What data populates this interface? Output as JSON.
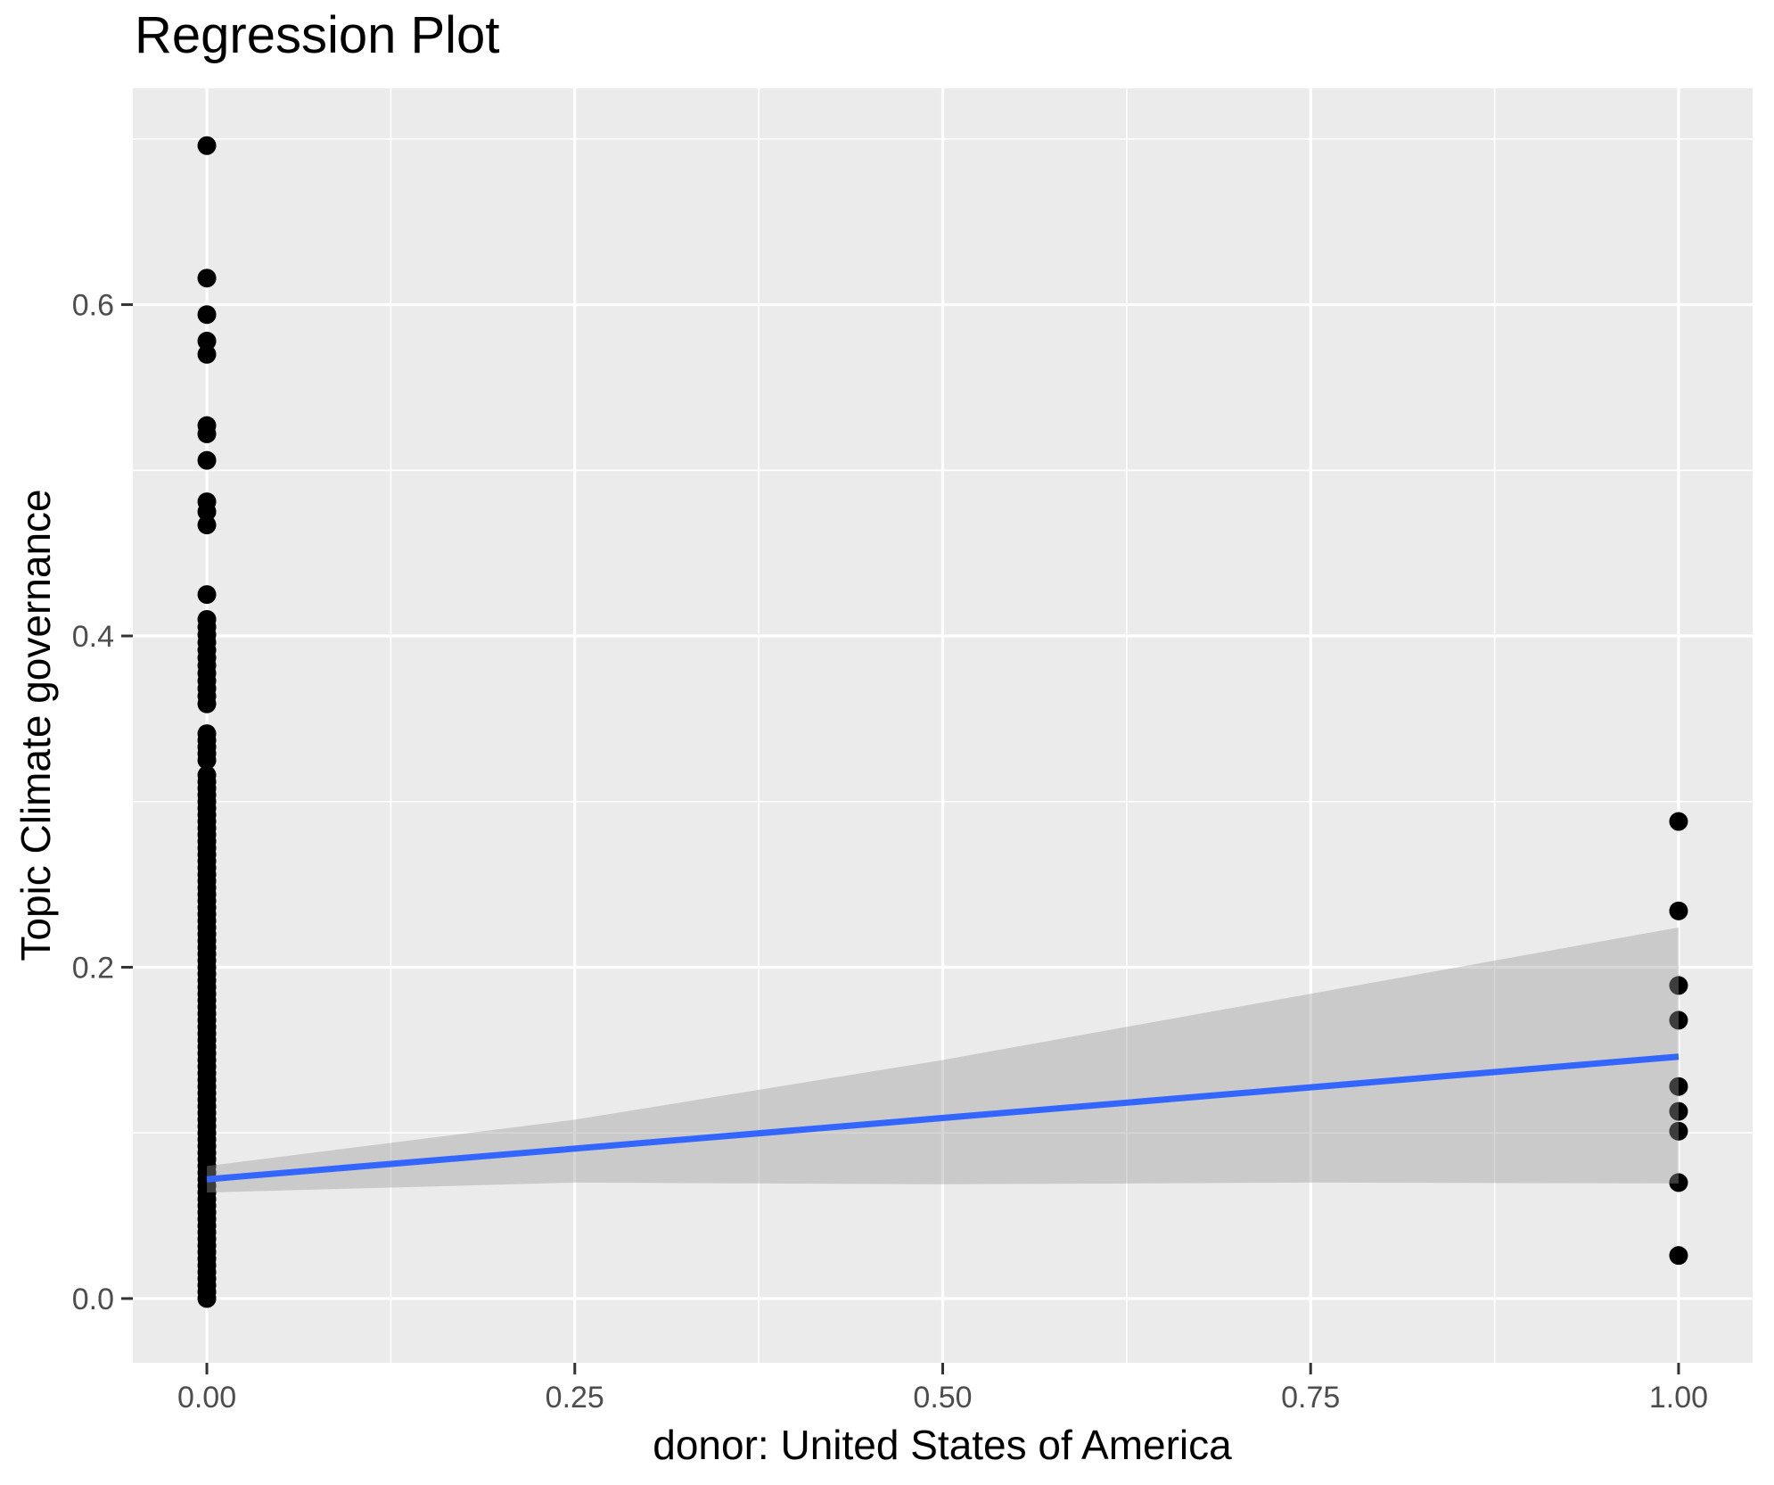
{
  "chart_data": {
    "type": "scatter",
    "title": "Regression Plot",
    "xlabel": "donor: United States of America",
    "ylabel": "Topic Climate governance",
    "legend": "none",
    "grid": "major-and-minor",
    "xlim": [
      -0.0503,
      1.0503
    ],
    "ylim": [
      -0.0388,
      0.7306
    ],
    "x_ticks": {
      "values": [
        0,
        0.25,
        0.5,
        0.75,
        1.0
      ],
      "labels": [
        "0.00",
        "0.25",
        "0.50",
        "0.75",
        "1.00"
      ]
    },
    "y_ticks": {
      "values": [
        0,
        0.2,
        0.4,
        0.6
      ],
      "labels": [
        "0.0",
        "0.2",
        "0.4",
        "0.6"
      ]
    },
    "x_minor": [
      0.125,
      0.375,
      0.625,
      0.875
    ],
    "y_minor": [
      0.1,
      0.3,
      0.5,
      0.7
    ],
    "points": {
      "x0_discrete": [
        0.696,
        0.616,
        0.594,
        0.578,
        0.57,
        0.527,
        0.522,
        0.506,
        0.481,
        0.475,
        0.467,
        0.425
      ],
      "x0_dense_strips": [
        {
          "x": 0,
          "from": 0.359,
          "to": 0.41,
          "count": 12
        },
        {
          "x": 0,
          "from": 0.325,
          "to": 0.341,
          "count": 5
        },
        {
          "x": 0,
          "from": 0.0,
          "to": 0.316,
          "count": 80
        }
      ],
      "x1": [
        0.288,
        0.234,
        0.189,
        0.168,
        0.128,
        0.113,
        0.101,
        0.07,
        0.026
      ]
    },
    "regression_line": {
      "x": [
        0,
        1
      ],
      "y": [
        0.072,
        0.146
      ]
    },
    "confidence_band": {
      "x": [
        0,
        0.25,
        0.5,
        0.75,
        1.0
      ],
      "upper": [
        0.08,
        0.108,
        0.144,
        0.184,
        0.224
      ],
      "lower": [
        0.064,
        0.07,
        0.069,
        0.07,
        0.0695
      ]
    },
    "colors": {
      "panel_bg": "#EBEBEB",
      "grid": "#FFFFFF",
      "point": "#000000",
      "line": "#3366FF",
      "band_fill": "#999999",
      "band_opacity": 0.4,
      "tick_label": "#4D4D4D",
      "tick_mark": "#333333",
      "title_text": "#000000"
    }
  }
}
